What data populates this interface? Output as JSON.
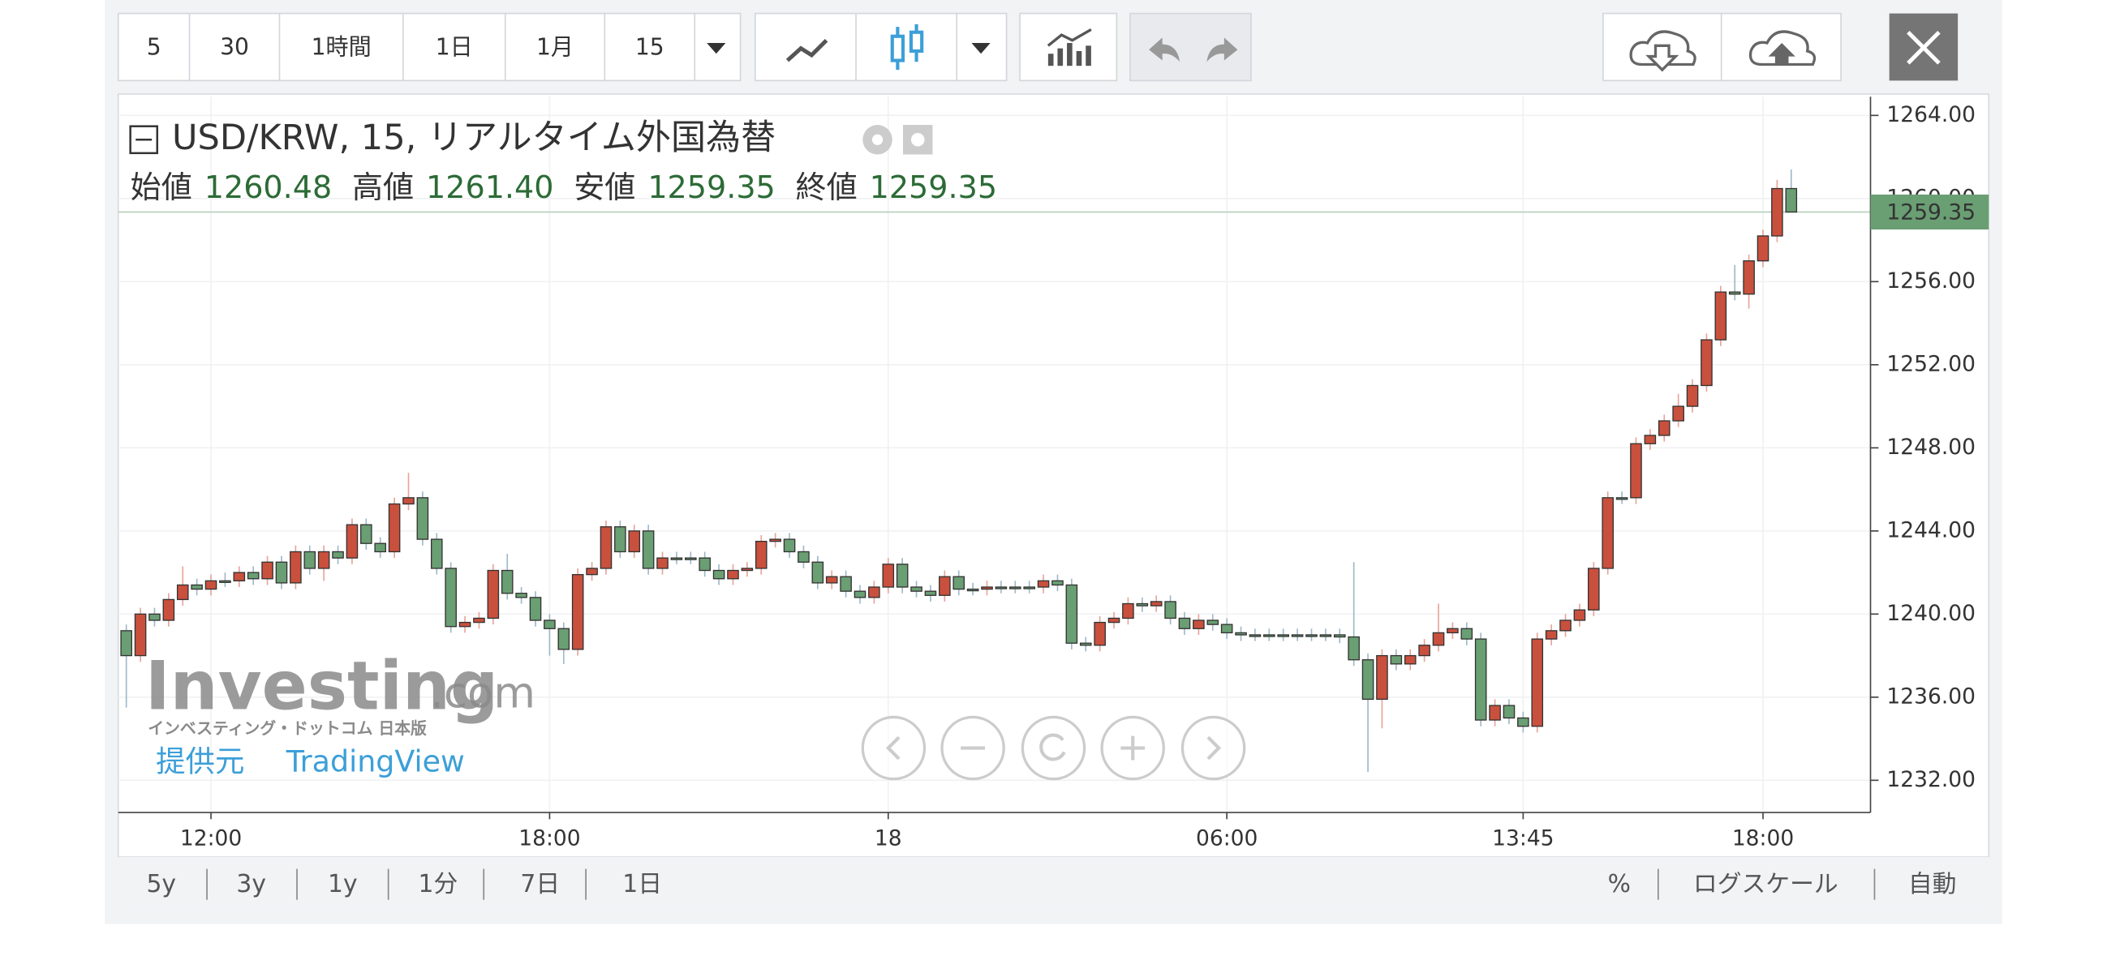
{
  "toolbar": {
    "intervals": [
      "5",
      "30",
      "1時間",
      "1日",
      "1月",
      "15"
    ]
  },
  "watermark": {
    "brand": "Investing",
    "domain": ".com",
    "subtitle": "インベスティング・ドットコム 日本版"
  },
  "provider": {
    "label": "提供元",
    "name": "TradingView"
  },
  "bottom_bar": {
    "ranges": [
      "5y",
      "3y",
      "1y",
      "1分",
      "7日",
      "1日"
    ],
    "options": [
      "%",
      "ログスケール",
      "自動"
    ]
  },
  "chart_data": {
    "type": "candlestick",
    "title": "USD/KRW, 15, リアルタイム外国為替",
    "ohlc_legend": [
      {
        "label": "始値",
        "value": "1260.48"
      },
      {
        "label": "高値",
        "value": "1261.40"
      },
      {
        "label": "安値",
        "value": "1259.35"
      },
      {
        "label": "終値",
        "value": "1259.35"
      }
    ],
    "last_price_label": "1259.35",
    "up_color": "#c9503d",
    "down_color": "#6a9e73",
    "ylim": [
      1230.45,
      1264.9
    ],
    "yticks": [
      {
        "value": 1264,
        "label": "1264.00"
      },
      {
        "value": 1260,
        "label": "1260.00"
      },
      {
        "value": 1256,
        "label": "1256.00"
      },
      {
        "value": 1252,
        "label": "1252.00"
      },
      {
        "value": 1248,
        "label": "1248.00"
      },
      {
        "value": 1244,
        "label": "1244.00"
      },
      {
        "value": 1240,
        "label": "1240.00"
      },
      {
        "value": 1236,
        "label": "1236.00"
      },
      {
        "value": 1232,
        "label": "1232.00"
      }
    ],
    "grid": true,
    "categories": [
      null,
      null,
      null,
      null,
      null,
      null,
      "12:00",
      null,
      null,
      null,
      null,
      null,
      null,
      null,
      null,
      null,
      null,
      null,
      null,
      null,
      null,
      null,
      null,
      null,
      null,
      null,
      null,
      null,
      null,
      null,
      "18:00",
      null,
      null,
      null,
      null,
      null,
      null,
      null,
      null,
      null,
      null,
      null,
      null,
      null,
      null,
      null,
      null,
      null,
      null,
      null,
      null,
      null,
      null,
      null,
      "18",
      null,
      null,
      null,
      null,
      null,
      null,
      null,
      null,
      null,
      null,
      null,
      null,
      null,
      null,
      null,
      null,
      null,
      null,
      null,
      null,
      null,
      null,
      null,
      "06:00",
      null,
      null,
      null,
      null,
      null,
      null,
      null,
      null,
      null,
      null,
      null,
      null,
      null,
      null,
      null,
      null,
      null,
      null,
      null,
      null,
      "13:45",
      null,
      null,
      null,
      null,
      null,
      null,
      null,
      null,
      null,
      null,
      null,
      null,
      null,
      null,
      null,
      null,
      "18:00",
      null,
      null
    ],
    "open": [
      1239.2,
      1238.0,
      1240.0,
      1239.7,
      1240.7,
      1241.4,
      1241.2,
      1241.6,
      1241.6,
      1242.0,
      1241.7,
      1242.5,
      1241.5,
      1243.0,
      1242.2,
      1243.0,
      1242.7,
      1244.3,
      1243.4,
      1243.0,
      1245.3,
      1245.6,
      1243.6,
      1242.2,
      1239.4,
      1239.6,
      1239.8,
      1242.1,
      1241.0,
      1240.8,
      1239.7,
      1239.3,
      1238.3,
      1241.9,
      1242.2,
      1244.2,
      1243.0,
      1244.0,
      1242.2,
      1242.7,
      1242.7,
      1242.7,
      1242.1,
      1241.7,
      1242.1,
      1242.2,
      1243.5,
      1243.6,
      1243.0,
      1242.5,
      1241.5,
      1241.8,
      1241.1,
      1240.8,
      1241.3,
      1242.4,
      1241.3,
      1241.1,
      1240.9,
      1241.8,
      1241.2,
      1241.2,
      1241.3,
      1241.3,
      1241.3,
      1241.3,
      1241.6,
      1241.4,
      1238.6,
      1238.5,
      1239.6,
      1239.8,
      1240.5,
      1240.4,
      1240.6,
      1239.8,
      1239.3,
      1239.7,
      1239.5,
      1239.1,
      1239.0,
      1239.0,
      1239.0,
      1239.0,
      1239.0,
      1239.0,
      1239.0,
      1238.9,
      1237.8,
      1235.9,
      1238.0,
      1237.6,
      1238.0,
      1238.5,
      1239.1,
      1239.3,
      1238.8,
      1234.9,
      1235.6,
      1235.0,
      1234.6,
      1238.8,
      1239.2,
      1239.7,
      1240.2,
      1242.2,
      1245.6,
      1245.6,
      1248.2,
      1248.6,
      1249.3,
      1250.0,
      1251.0,
      1253.2,
      1255.5,
      1255.4,
      1257.0,
      1258.2,
      1260.48
    ],
    "high": [
      1239.5,
      1240.3,
      1240.3,
      1241.0,
      1242.3,
      1241.7,
      1241.9,
      1242.0,
      1242.3,
      1242.3,
      1242.8,
      1242.8,
      1243.3,
      1243.3,
      1243.3,
      1243.3,
      1244.6,
      1244.6,
      1243.7,
      1245.6,
      1246.8,
      1245.9,
      1243.9,
      1242.5,
      1239.9,
      1240.1,
      1242.4,
      1242.9,
      1241.3,
      1241.1,
      1240.0,
      1239.6,
      1242.2,
      1242.5,
      1244.5,
      1244.5,
      1244.3,
      1244.3,
      1243.0,
      1243.0,
      1243.0,
      1243.0,
      1242.4,
      1242.4,
      1242.5,
      1243.8,
      1243.9,
      1243.9,
      1243.3,
      1242.8,
      1242.1,
      1242.1,
      1241.4,
      1241.6,
      1242.7,
      1242.7,
      1241.6,
      1241.4,
      1242.1,
      1242.1,
      1241.5,
      1241.6,
      1241.6,
      1241.6,
      1241.6,
      1241.9,
      1241.9,
      1241.7,
      1238.9,
      1239.9,
      1240.1,
      1240.8,
      1240.8,
      1240.9,
      1240.9,
      1240.1,
      1240.0,
      1240.0,
      1239.8,
      1239.4,
      1239.3,
      1239.3,
      1239.3,
      1239.3,
      1239.3,
      1239.3,
      1239.3,
      1242.5,
      1238.1,
      1238.3,
      1238.3,
      1238.3,
      1238.8,
      1240.5,
      1239.6,
      1239.6,
      1239.1,
      1235.9,
      1235.9,
      1235.3,
      1239.1,
      1239.5,
      1240.0,
      1240.5,
      1242.5,
      1245.9,
      1245.9,
      1248.5,
      1248.9,
      1249.6,
      1250.6,
      1251.3,
      1253.5,
      1255.8,
      1256.8,
      1257.3,
      1258.5,
      1260.9,
      1261.4
    ],
    "low": [
      1235.5,
      1237.7,
      1239.4,
      1239.4,
      1240.4,
      1240.9,
      1240.9,
      1241.3,
      1241.3,
      1241.4,
      1241.4,
      1241.2,
      1241.2,
      1241.9,
      1241.6,
      1242.4,
      1242.4,
      1243.1,
      1242.7,
      1242.7,
      1245.0,
      1243.3,
      1241.9,
      1239.1,
      1239.1,
      1239.3,
      1239.5,
      1240.7,
      1240.5,
      1239.4,
      1238.0,
      1237.6,
      1238.0,
      1241.6,
      1241.9,
      1242.7,
      1242.7,
      1241.9,
      1241.9,
      1242.4,
      1242.4,
      1241.8,
      1241.4,
      1241.4,
      1241.8,
      1241.9,
      1243.2,
      1242.7,
      1242.2,
      1241.2,
      1241.2,
      1240.8,
      1240.5,
      1240.5,
      1241.0,
      1241.0,
      1240.8,
      1240.6,
      1240.6,
      1240.9,
      1240.9,
      1240.9,
      1241.0,
      1241.0,
      1241.0,
      1241.0,
      1241.1,
      1238.3,
      1238.2,
      1238.2,
      1239.3,
      1239.5,
      1240.1,
      1240.1,
      1239.5,
      1239.0,
      1239.0,
      1239.2,
      1238.8,
      1238.7,
      1238.7,
      1238.7,
      1238.7,
      1238.7,
      1238.7,
      1238.7,
      1238.6,
      1237.5,
      1232.4,
      1234.5,
      1237.3,
      1237.3,
      1237.7,
      1238.2,
      1238.8,
      1238.5,
      1234.6,
      1234.6,
      1234.7,
      1234.3,
      1234.3,
      1238.5,
      1238.9,
      1239.4,
      1239.9,
      1241.9,
      1245.3,
      1245.3,
      1247.9,
      1248.3,
      1249.0,
      1249.7,
      1250.7,
      1252.9,
      1255.1,
      1254.7,
      1256.7,
      1257.9,
      1259.35
    ],
    "close": [
      1238.0,
      1240.0,
      1239.7,
      1240.7,
      1241.4,
      1241.2,
      1241.6,
      1241.6,
      1242.0,
      1241.7,
      1242.5,
      1241.5,
      1243.0,
      1242.2,
      1243.0,
      1242.7,
      1244.3,
      1243.4,
      1243.0,
      1245.3,
      1245.6,
      1243.6,
      1242.2,
      1239.4,
      1239.6,
      1239.8,
      1242.1,
      1241.0,
      1240.8,
      1239.7,
      1239.3,
      1238.3,
      1241.9,
      1242.2,
      1244.2,
      1243.0,
      1244.0,
      1242.2,
      1242.7,
      1242.7,
      1242.7,
      1242.1,
      1241.7,
      1242.1,
      1242.2,
      1243.5,
      1243.6,
      1243.0,
      1242.5,
      1241.5,
      1241.8,
      1241.1,
      1240.8,
      1241.3,
      1242.4,
      1241.3,
      1241.1,
      1240.9,
      1241.8,
      1241.2,
      1241.2,
      1241.3,
      1241.3,
      1241.3,
      1241.3,
      1241.6,
      1241.4,
      1238.6,
      1238.5,
      1239.6,
      1239.8,
      1240.5,
      1240.4,
      1240.6,
      1239.8,
      1239.3,
      1239.7,
      1239.5,
      1239.1,
      1239.0,
      1239.0,
      1239.0,
      1239.0,
      1239.0,
      1239.0,
      1239.0,
      1238.9,
      1237.8,
      1235.9,
      1238.0,
      1237.6,
      1238.0,
      1238.5,
      1239.1,
      1239.3,
      1238.8,
      1234.9,
      1235.6,
      1235.0,
      1234.6,
      1238.8,
      1239.2,
      1239.7,
      1240.2,
      1242.2,
      1245.6,
      1245.6,
      1248.2,
      1248.6,
      1249.3,
      1250.0,
      1251.0,
      1253.2,
      1255.5,
      1255.4,
      1257.0,
      1258.2,
      1260.48,
      1259.35
    ]
  }
}
